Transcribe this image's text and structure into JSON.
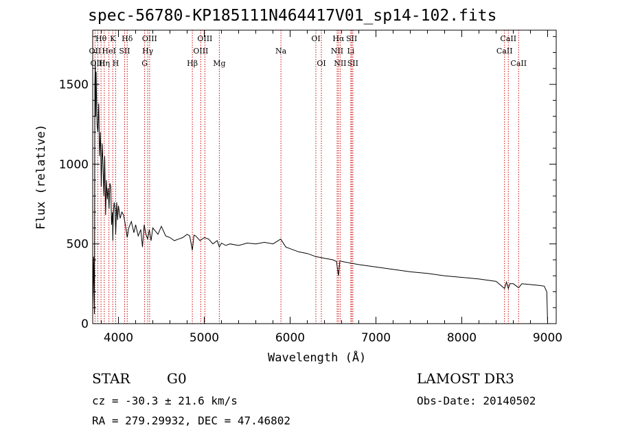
{
  "chart_data": {
    "type": "line",
    "title": "spec-56780-KP185111N464417V01_sp14-102.fits",
    "xlabel": "Wavelength (Å)",
    "ylabel": "Flux (relative)",
    "xlim": [
      3700,
      9100
    ],
    "ylim": [
      0,
      1840
    ],
    "x_ticks": [
      4000,
      5000,
      6000,
      7000,
      8000,
      9000
    ],
    "y_ticks": [
      0,
      500,
      1000,
      1500
    ],
    "series": [
      {
        "name": "spectrum",
        "x": [
          3700,
          3710,
          3720,
          3725,
          3730,
          3735,
          3740,
          3750,
          3760,
          3770,
          3780,
          3790,
          3800,
          3810,
          3820,
          3830,
          3840,
          3850,
          3860,
          3870,
          3880,
          3890,
          3900,
          3910,
          3920,
          3930,
          3934,
          3940,
          3950,
          3960,
          3968,
          3980,
          3990,
          4000,
          4020,
          4040,
          4060,
          4080,
          4102,
          4120,
          4150,
          4180,
          4200,
          4230,
          4260,
          4280,
          4300,
          4320,
          4340,
          4360,
          4380,
          4400,
          4430,
          4460,
          4500,
          4550,
          4600,
          4650,
          4700,
          4750,
          4800,
          4830,
          4861,
          4880,
          4900,
          4950,
          5000,
          5050,
          5100,
          5150,
          5175,
          5200,
          5250,
          5300,
          5400,
          5500,
          5600,
          5700,
          5800,
          5890,
          5950,
          6000,
          6100,
          6200,
          6300,
          6400,
          6500,
          6540,
          6563,
          6580,
          6600,
          6700,
          6800,
          7000,
          7200,
          7400,
          7600,
          7800,
          8000,
          8200,
          8400,
          8498,
          8520,
          8542,
          8560,
          8600,
          8662,
          8700,
          8800,
          8900,
          8960,
          8990,
          9000
        ],
        "y": [
          80,
          420,
          60,
          1500,
          1650,
          1300,
          1580,
          1250,
          1200,
          1380,
          1050,
          1200,
          860,
          1130,
          1000,
          800,
          1050,
          680,
          900,
          780,
          850,
          720,
          880,
          860,
          620,
          700,
          520,
          690,
          760,
          720,
          560,
          760,
          650,
          740,
          660,
          700,
          680,
          620,
          540,
          600,
          640,
          570,
          620,
          550,
          590,
          480,
          620,
          560,
          530,
          590,
          520,
          600,
          580,
          560,
          610,
          550,
          540,
          520,
          530,
          540,
          560,
          550,
          460,
          555,
          550,
          520,
          540,
          530,
          500,
          520,
          480,
          505,
          490,
          500,
          490,
          505,
          500,
          510,
          500,
          530,
          480,
          470,
          450,
          440,
          420,
          410,
          400,
          390,
          300,
          395,
          390,
          380,
          370,
          355,
          340,
          325,
          315,
          300,
          290,
          280,
          265,
          220,
          260,
          220,
          250,
          250,
          225,
          250,
          245,
          240,
          235,
          200,
          0
        ]
      }
    ],
    "spectral_lines": [
      {
        "label": "Hθ",
        "wavelength": 3797,
        "row": 0
      },
      {
        "label": "OII",
        "wavelength": 3727,
        "row": 1
      },
      {
        "label": "OIII",
        "wavelength": 3760,
        "row": 2
      },
      {
        "label": "K",
        "wavelength": 3934,
        "row": 0
      },
      {
        "label": "HeI",
        "wavelength": 3889,
        "row": 1
      },
      {
        "label": "Hη",
        "wavelength": 3835,
        "row": 2
      },
      {
        "label": "SII",
        "wavelength": 4072,
        "row": 1
      },
      {
        "label": "H",
        "wavelength": 3968,
        "row": 2
      },
      {
        "label": "Hδ",
        "wavelength": 4102,
        "row": 0
      },
      {
        "label": "OIII",
        "wavelength": 4363,
        "row": 0
      },
      {
        "label": "Hγ",
        "wavelength": 4341,
        "row": 1
      },
      {
        "label": "G",
        "wavelength": 4305,
        "row": 2
      },
      {
        "label": "OIII",
        "wavelength": 5007,
        "row": 0
      },
      {
        "label": "OIII",
        "wavelength": 4959,
        "row": 1
      },
      {
        "label": "Hβ",
        "wavelength": 4861,
        "row": 2
      },
      {
        "label": "Mg",
        "wavelength": 5175,
        "row": 2
      },
      {
        "label": "Na",
        "wavelength": 5893,
        "row": 1
      },
      {
        "label": "OI",
        "wavelength": 6300,
        "row": 0
      },
      {
        "label": "OI",
        "wavelength": 6364,
        "row": 2
      },
      {
        "label": "Hα",
        "wavelength": 6563,
        "row": 0
      },
      {
        "label": "NII",
        "wavelength": 6548,
        "row": 1
      },
      {
        "label": "NII",
        "wavelength": 6583,
        "row": 2
      },
      {
        "label": "SII",
        "wavelength": 6717,
        "row": 0
      },
      {
        "label": "Li",
        "wavelength": 6707,
        "row": 1
      },
      {
        "label": "SII",
        "wavelength": 6731,
        "row": 2
      },
      {
        "label": "CaII",
        "wavelength": 8542,
        "row": 0
      },
      {
        "label": "CaII",
        "wavelength": 8498,
        "row": 1
      },
      {
        "label": "CaII",
        "wavelength": 8662,
        "row": 2
      }
    ]
  },
  "info": {
    "object_class": "STAR",
    "subclass": "G0",
    "survey": "LAMOST DR3",
    "velocity": "cz = -30.3 ± 21.6 km/s",
    "obs_date": "Obs-Date: 20140502",
    "coords": "RA = 279.29932, DEC =  47.46802"
  },
  "colors": {
    "line_marker": "#cc0000",
    "spectrum": "#000000",
    "axis": "#000000"
  }
}
